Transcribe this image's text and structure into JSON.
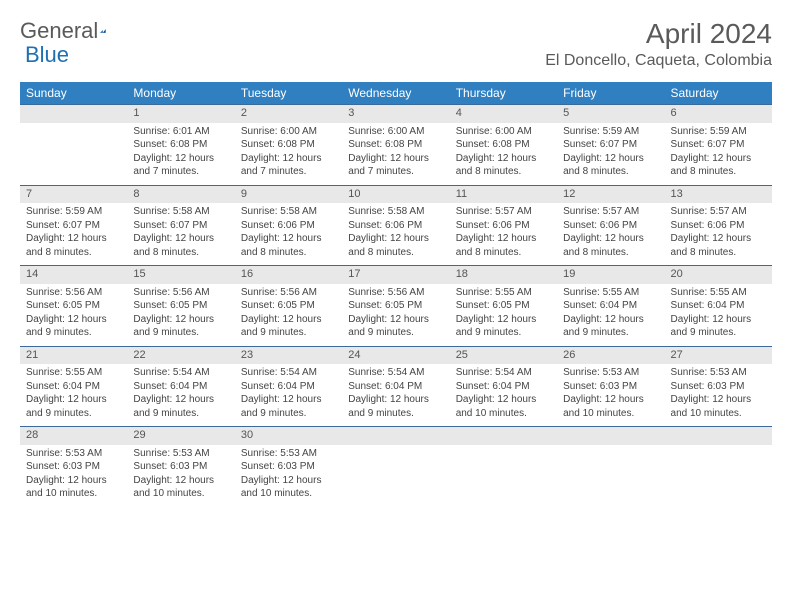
{
  "brand": {
    "part1": "General",
    "part2": "Blue"
  },
  "title": "April 2024",
  "location": "El Doncello, Caqueta, Colombia",
  "colors": {
    "header_bg": "#2f7fc1",
    "daynum_bg": "#e8e8e8",
    "text": "#333333",
    "rule": "#2f7fc1"
  },
  "day_headers": [
    "Sunday",
    "Monday",
    "Tuesday",
    "Wednesday",
    "Thursday",
    "Friday",
    "Saturday"
  ],
  "weeks": [
    [
      {
        "n": "",
        "sr": "",
        "ss": "",
        "dl": ""
      },
      {
        "n": "1",
        "sr": "Sunrise: 6:01 AM",
        "ss": "Sunset: 6:08 PM",
        "dl": "Daylight: 12 hours and 7 minutes."
      },
      {
        "n": "2",
        "sr": "Sunrise: 6:00 AM",
        "ss": "Sunset: 6:08 PM",
        "dl": "Daylight: 12 hours and 7 minutes."
      },
      {
        "n": "3",
        "sr": "Sunrise: 6:00 AM",
        "ss": "Sunset: 6:08 PM",
        "dl": "Daylight: 12 hours and 7 minutes."
      },
      {
        "n": "4",
        "sr": "Sunrise: 6:00 AM",
        "ss": "Sunset: 6:08 PM",
        "dl": "Daylight: 12 hours and 8 minutes."
      },
      {
        "n": "5",
        "sr": "Sunrise: 5:59 AM",
        "ss": "Sunset: 6:07 PM",
        "dl": "Daylight: 12 hours and 8 minutes."
      },
      {
        "n": "6",
        "sr": "Sunrise: 5:59 AM",
        "ss": "Sunset: 6:07 PM",
        "dl": "Daylight: 12 hours and 8 minutes."
      }
    ],
    [
      {
        "n": "7",
        "sr": "Sunrise: 5:59 AM",
        "ss": "Sunset: 6:07 PM",
        "dl": "Daylight: 12 hours and 8 minutes."
      },
      {
        "n": "8",
        "sr": "Sunrise: 5:58 AM",
        "ss": "Sunset: 6:07 PM",
        "dl": "Daylight: 12 hours and 8 minutes."
      },
      {
        "n": "9",
        "sr": "Sunrise: 5:58 AM",
        "ss": "Sunset: 6:06 PM",
        "dl": "Daylight: 12 hours and 8 minutes."
      },
      {
        "n": "10",
        "sr": "Sunrise: 5:58 AM",
        "ss": "Sunset: 6:06 PM",
        "dl": "Daylight: 12 hours and 8 minutes."
      },
      {
        "n": "11",
        "sr": "Sunrise: 5:57 AM",
        "ss": "Sunset: 6:06 PM",
        "dl": "Daylight: 12 hours and 8 minutes."
      },
      {
        "n": "12",
        "sr": "Sunrise: 5:57 AM",
        "ss": "Sunset: 6:06 PM",
        "dl": "Daylight: 12 hours and 8 minutes."
      },
      {
        "n": "13",
        "sr": "Sunrise: 5:57 AM",
        "ss": "Sunset: 6:06 PM",
        "dl": "Daylight: 12 hours and 8 minutes."
      }
    ],
    [
      {
        "n": "14",
        "sr": "Sunrise: 5:56 AM",
        "ss": "Sunset: 6:05 PM",
        "dl": "Daylight: 12 hours and 9 minutes."
      },
      {
        "n": "15",
        "sr": "Sunrise: 5:56 AM",
        "ss": "Sunset: 6:05 PM",
        "dl": "Daylight: 12 hours and 9 minutes."
      },
      {
        "n": "16",
        "sr": "Sunrise: 5:56 AM",
        "ss": "Sunset: 6:05 PM",
        "dl": "Daylight: 12 hours and 9 minutes."
      },
      {
        "n": "17",
        "sr": "Sunrise: 5:56 AM",
        "ss": "Sunset: 6:05 PM",
        "dl": "Daylight: 12 hours and 9 minutes."
      },
      {
        "n": "18",
        "sr": "Sunrise: 5:55 AM",
        "ss": "Sunset: 6:05 PM",
        "dl": "Daylight: 12 hours and 9 minutes."
      },
      {
        "n": "19",
        "sr": "Sunrise: 5:55 AM",
        "ss": "Sunset: 6:04 PM",
        "dl": "Daylight: 12 hours and 9 minutes."
      },
      {
        "n": "20",
        "sr": "Sunrise: 5:55 AM",
        "ss": "Sunset: 6:04 PM",
        "dl": "Daylight: 12 hours and 9 minutes."
      }
    ],
    [
      {
        "n": "21",
        "sr": "Sunrise: 5:55 AM",
        "ss": "Sunset: 6:04 PM",
        "dl": "Daylight: 12 hours and 9 minutes."
      },
      {
        "n": "22",
        "sr": "Sunrise: 5:54 AM",
        "ss": "Sunset: 6:04 PM",
        "dl": "Daylight: 12 hours and 9 minutes."
      },
      {
        "n": "23",
        "sr": "Sunrise: 5:54 AM",
        "ss": "Sunset: 6:04 PM",
        "dl": "Daylight: 12 hours and 9 minutes."
      },
      {
        "n": "24",
        "sr": "Sunrise: 5:54 AM",
        "ss": "Sunset: 6:04 PM",
        "dl": "Daylight: 12 hours and 9 minutes."
      },
      {
        "n": "25",
        "sr": "Sunrise: 5:54 AM",
        "ss": "Sunset: 6:04 PM",
        "dl": "Daylight: 12 hours and 10 minutes."
      },
      {
        "n": "26",
        "sr": "Sunrise: 5:53 AM",
        "ss": "Sunset: 6:03 PM",
        "dl": "Daylight: 12 hours and 10 minutes."
      },
      {
        "n": "27",
        "sr": "Sunrise: 5:53 AM",
        "ss": "Sunset: 6:03 PM",
        "dl": "Daylight: 12 hours and 10 minutes."
      }
    ],
    [
      {
        "n": "28",
        "sr": "Sunrise: 5:53 AM",
        "ss": "Sunset: 6:03 PM",
        "dl": "Daylight: 12 hours and 10 minutes."
      },
      {
        "n": "29",
        "sr": "Sunrise: 5:53 AM",
        "ss": "Sunset: 6:03 PM",
        "dl": "Daylight: 12 hours and 10 minutes."
      },
      {
        "n": "30",
        "sr": "Sunrise: 5:53 AM",
        "ss": "Sunset: 6:03 PM",
        "dl": "Daylight: 12 hours and 10 minutes."
      },
      {
        "n": "",
        "sr": "",
        "ss": "",
        "dl": ""
      },
      {
        "n": "",
        "sr": "",
        "ss": "",
        "dl": ""
      },
      {
        "n": "",
        "sr": "",
        "ss": "",
        "dl": ""
      },
      {
        "n": "",
        "sr": "",
        "ss": "",
        "dl": ""
      }
    ]
  ]
}
